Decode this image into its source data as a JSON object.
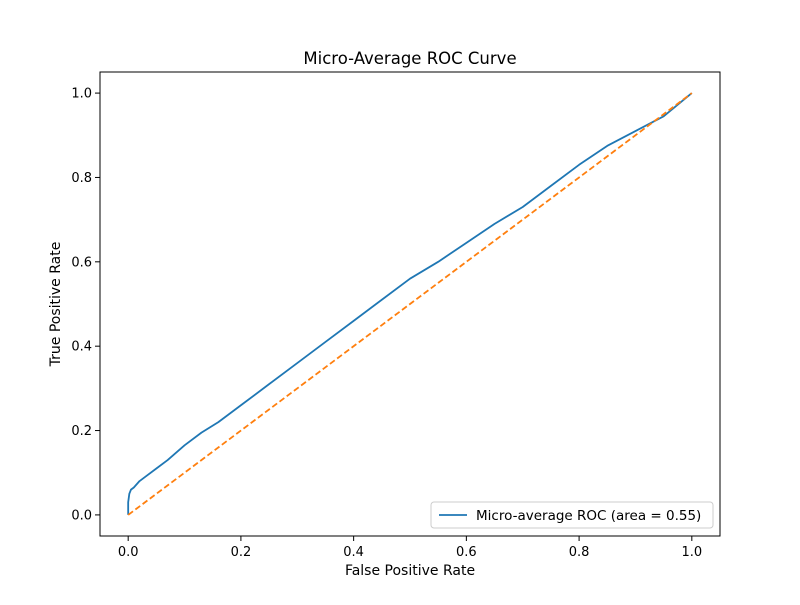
{
  "chart_data": {
    "type": "line",
    "title": "Micro-Average ROC Curve",
    "xlabel": "False Positive Rate",
    "ylabel": "True Positive Rate",
    "xlim": [
      -0.05,
      1.05
    ],
    "ylim": [
      -0.05,
      1.05
    ],
    "xticks": [
      0.0,
      0.2,
      0.4,
      0.6,
      0.8,
      1.0
    ],
    "yticks": [
      0.0,
      0.2,
      0.4,
      0.6,
      0.8,
      1.0
    ],
    "xtick_labels": [
      "0.0",
      "0.2",
      "0.4",
      "0.6",
      "0.8",
      "1.0"
    ],
    "ytick_labels": [
      "0.0",
      "0.2",
      "0.4",
      "0.6",
      "0.8",
      "1.0"
    ],
    "grid": false,
    "legend_position": "lower-right",
    "series": [
      {
        "name": "Micro-average ROC (area = 0.55)",
        "color": "#1f77b4",
        "style": "solid",
        "x": [
          0.0,
          0.0,
          0.002,
          0.005,
          0.01,
          0.02,
          0.03,
          0.05,
          0.07,
          0.1,
          0.13,
          0.16,
          0.2,
          0.25,
          0.3,
          0.35,
          0.4,
          0.45,
          0.5,
          0.55,
          0.6,
          0.65,
          0.7,
          0.75,
          0.8,
          0.85,
          0.9,
          0.95,
          1.0
        ],
        "y": [
          0.0,
          0.03,
          0.05,
          0.06,
          0.065,
          0.08,
          0.09,
          0.11,
          0.13,
          0.165,
          0.195,
          0.22,
          0.26,
          0.31,
          0.36,
          0.41,
          0.46,
          0.51,
          0.56,
          0.6,
          0.645,
          0.69,
          0.73,
          0.78,
          0.83,
          0.875,
          0.91,
          0.945,
          1.0
        ]
      },
      {
        "name": "",
        "color": "#ff7f0e",
        "style": "dashed",
        "x": [
          0.0,
          1.0
        ],
        "y": [
          0.0,
          1.0
        ]
      }
    ]
  }
}
